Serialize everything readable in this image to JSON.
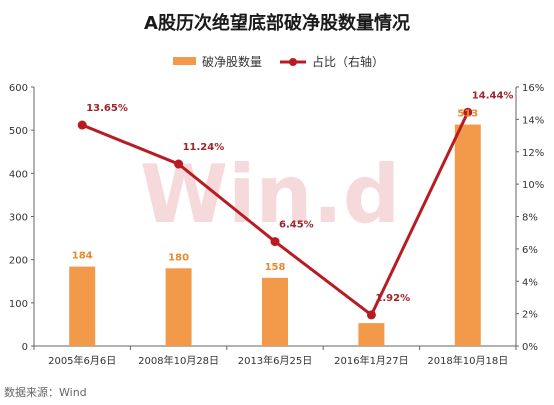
{
  "chart_data": {
    "type": "bar",
    "title": "A股历次绝望底部破净股数量情况",
    "categories": [
      "2005年6月6日",
      "2008年10月28日",
      "2013年6月25日",
      "2016年1月27日",
      "2018年10月18日"
    ],
    "series": [
      {
        "name": "破净股数量",
        "type": "bar",
        "axis": "left",
        "color": "#f29a4a",
        "values": [
          184,
          180,
          158,
          53,
          513
        ],
        "labels": [
          "184",
          "180",
          "158",
          "",
          "513"
        ]
      },
      {
        "name": "占比（右轴）",
        "type": "line",
        "axis": "right",
        "color": "#b81c22",
        "values": [
          13.65,
          11.24,
          6.45,
          1.92,
          14.44
        ],
        "labels": [
          "13.65%",
          "11.24%",
          "6.45%",
          "1.92%",
          "14.44%"
        ]
      }
    ],
    "y_left": {
      "ylim": [
        0,
        600
      ],
      "ticks": [
        0,
        100,
        200,
        300,
        400,
        500,
        600
      ],
      "tick_labels": [
        "0",
        "100",
        "200",
        "300",
        "400",
        "500",
        "600"
      ]
    },
    "y_right": {
      "ylim": [
        0,
        16
      ],
      "ticks": [
        0,
        2,
        4,
        6,
        8,
        10,
        12,
        14,
        16
      ],
      "tick_labels": [
        "0%",
        "2%",
        "4%",
        "6%",
        "8%",
        "10%",
        "12%",
        "14%",
        "16%"
      ]
    },
    "legend": {
      "placement": "top-center"
    },
    "grid": false,
    "watermark": "Win.d",
    "source": "数据来源：Wind"
  }
}
